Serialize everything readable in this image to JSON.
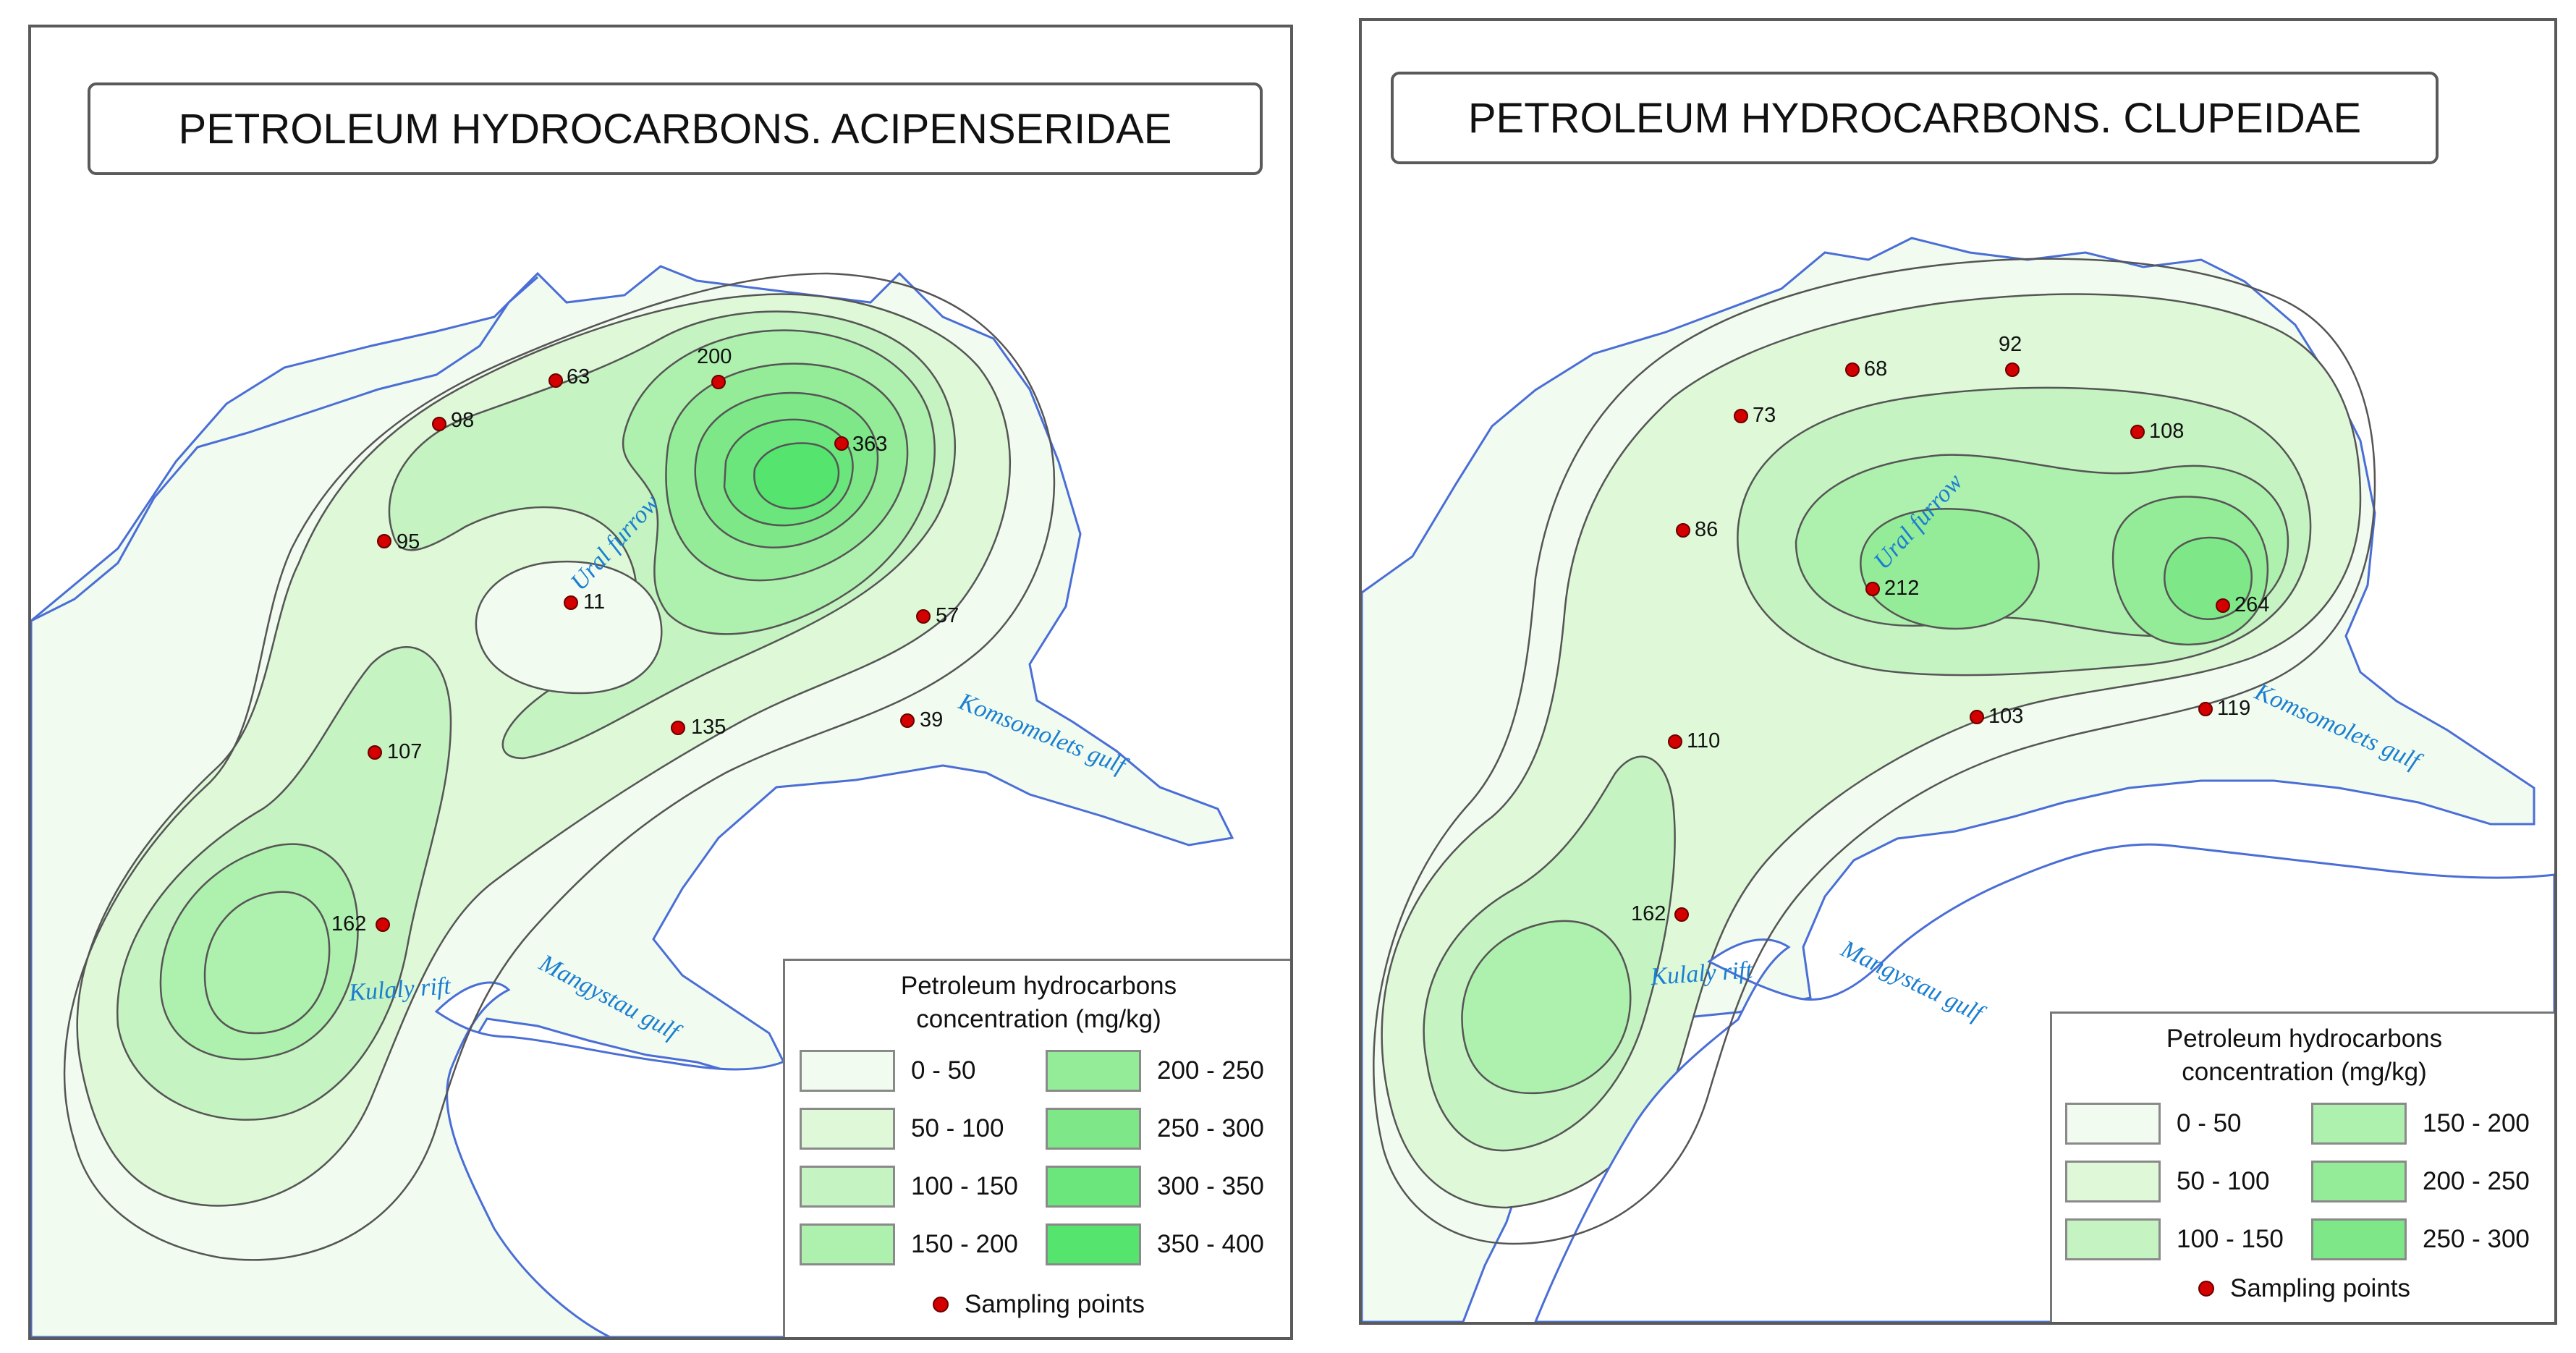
{
  "colors": {
    "class_0_50": "#f1fbef",
    "class_50_100": "#def8d8",
    "class_100_150": "#c6f3c2",
    "class_150_200": "#aef0ad",
    "class_200_250": "#95ec98",
    "class_250_300": "#7ee888",
    "class_300_350": "#6be67c",
    "class_350_400": "#55e46e",
    "coast": "#4a6ed6",
    "isoline": "#555555",
    "sample_point": "#d40000",
    "geo_label": "#1a7fd0"
  },
  "maps": [
    {
      "title": "PETROLEUM HYDROCARBONS. ACIPENSERIDAE",
      "legend": {
        "title_line1": "Petroleum hydrocarbons",
        "title_line2": "concentration (mg/kg)",
        "classes": [
          "0 - 50",
          "50 - 100",
          "100 - 150",
          "150 - 200",
          "200 - 250",
          "250 - 300",
          "300 - 350",
          "350 - 400"
        ],
        "sampling_label": "Sampling points"
      },
      "points": [
        {
          "label": "63"
        },
        {
          "label": "200"
        },
        {
          "label": "98"
        },
        {
          "label": "363"
        },
        {
          "label": "95"
        },
        {
          "label": "11"
        },
        {
          "label": "57"
        },
        {
          "label": "135"
        },
        {
          "label": "39"
        },
        {
          "label": "107"
        },
        {
          "label": "162"
        }
      ],
      "places": {
        "ural_furrow": "Ural furrow",
        "komsomolets_gulf": "Komsomolets gulf",
        "kulaly_rift": "Kulaly rift",
        "mangystau_gulf": "Mangystau gulf"
      }
    },
    {
      "title": "PETROLEUM HYDROCARBONS. CLUPEIDAE",
      "legend": {
        "title_line1": "Petroleum hydrocarbons",
        "title_line2": "concentration (mg/kg)",
        "classes": [
          "0 - 50",
          "50 - 100",
          "100 - 150",
          "150 - 200",
          "200 - 250",
          "250 - 300"
        ],
        "sampling_label": "Sampling points"
      },
      "points": [
        {
          "label": "68"
        },
        {
          "label": "92"
        },
        {
          "label": "73"
        },
        {
          "label": "108"
        },
        {
          "label": "86"
        },
        {
          "label": "212"
        },
        {
          "label": "264"
        },
        {
          "label": "110"
        },
        {
          "label": "103"
        },
        {
          "label": "119"
        },
        {
          "label": "162"
        }
      ],
      "places": {
        "ural_furrow": "Ural furrow",
        "komsomolets_gulf": "Komsomolets gulf",
        "kulaly_rift": "Kulaly rift",
        "mangystau_gulf": "Mangystau gulf"
      }
    }
  ]
}
